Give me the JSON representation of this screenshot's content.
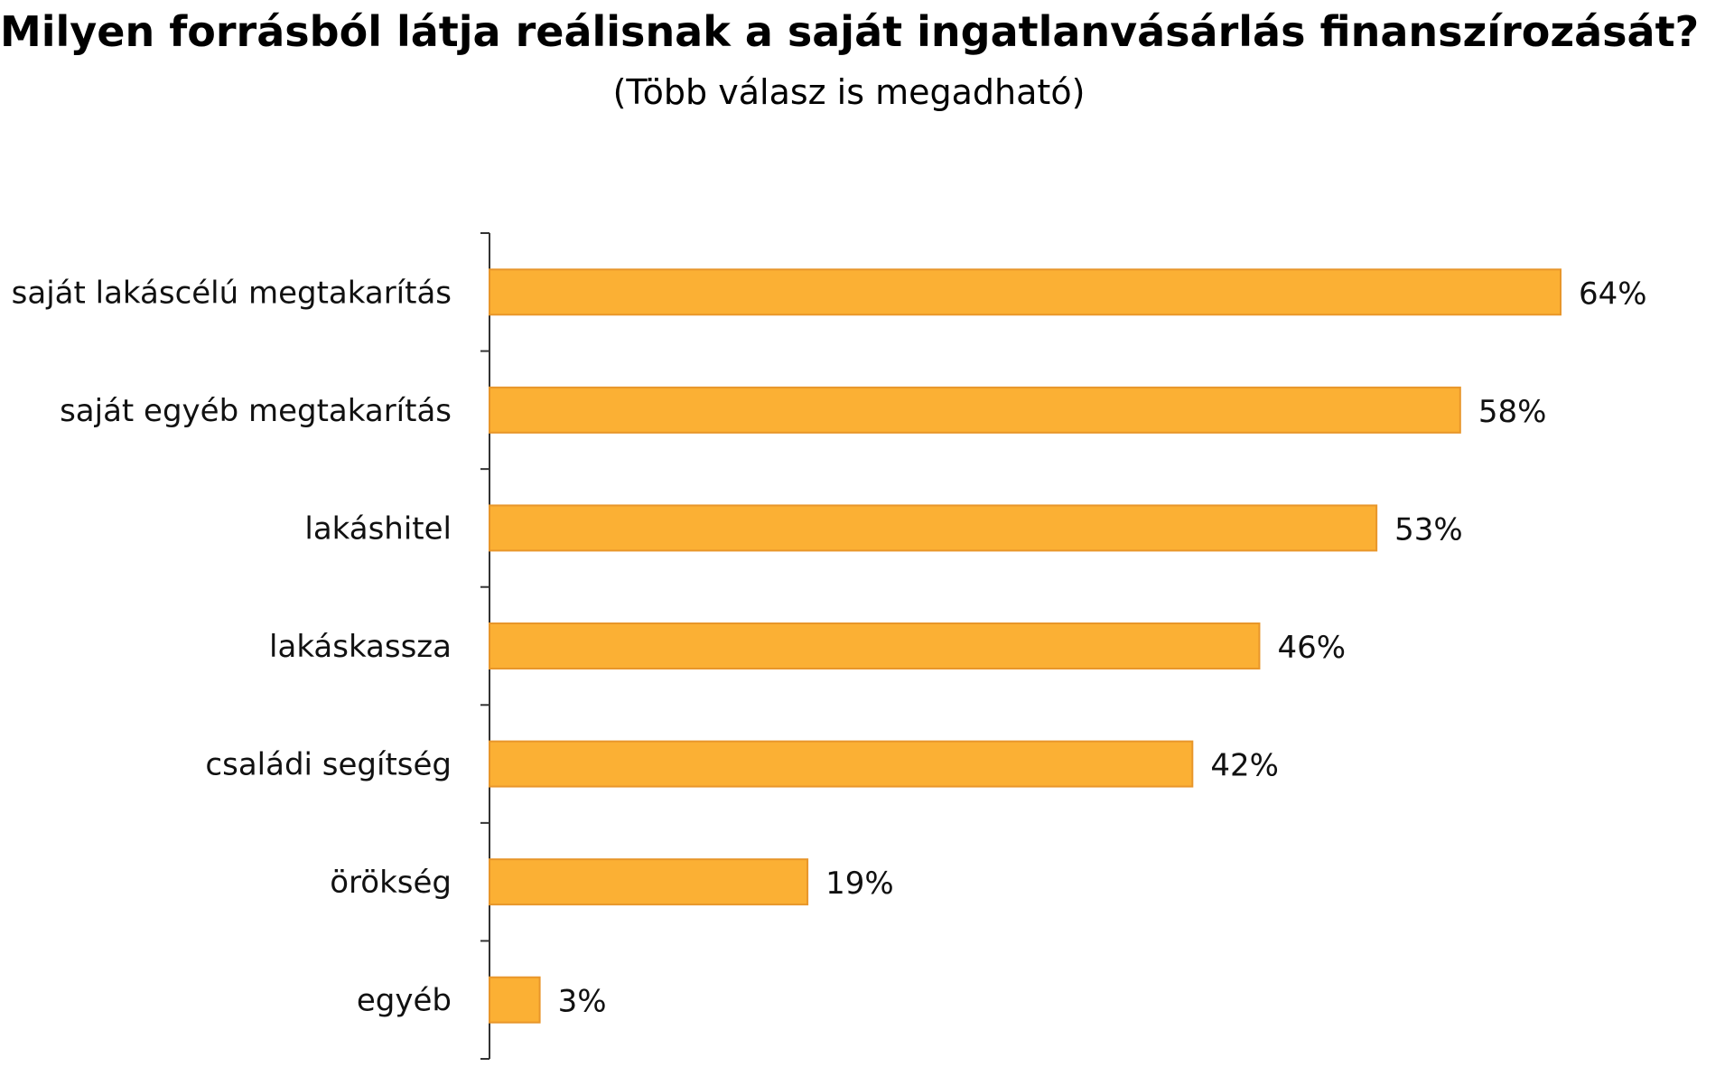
{
  "chart_data": {
    "type": "bar",
    "orientation": "horizontal",
    "title": "Milyen forrásból látja reálisnak a saját  ingatlanvásárlás finanszírozását?",
    "subtitle": "(Több válasz is megadható)",
    "categories": [
      "saját lakáscélú  megtakarítás",
      "saját egyéb  megtakarítás",
      "lakáshitel",
      "lakáskassza",
      "családi segítség",
      "örökség",
      "egyéb"
    ],
    "values": [
      64,
      58,
      53,
      46,
      42,
      19,
      3
    ],
    "value_labels": [
      "64%",
      "58%",
      "53%",
      "46%",
      "42%",
      "19%",
      "3%"
    ],
    "unit": "%",
    "xlim": [
      0,
      100
    ],
    "grid": false,
    "legend": "none",
    "colors": {
      "bar_fill": "#FBB034",
      "bar_edge": "#E8962A",
      "axis": "#333333"
    }
  }
}
